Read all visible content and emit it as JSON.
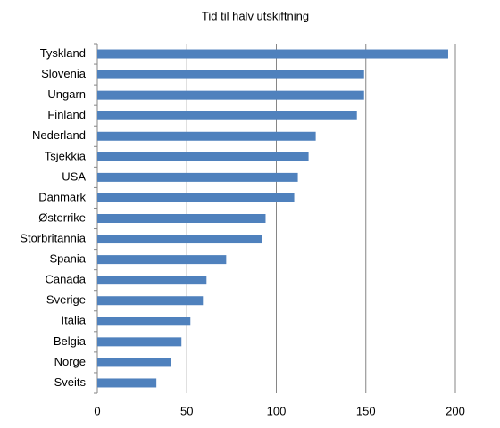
{
  "chart_data": {
    "type": "bar",
    "orientation": "horizontal",
    "title": "Tid til halv utskiftning",
    "categories": [
      "Tyskland",
      "Slovenia",
      "Ungarn",
      "Finland",
      "Nederland",
      "Tsjekkia",
      "USA",
      "Danmark",
      "Østerrike",
      "Storbritannia",
      "Spania",
      "Canada",
      "Sverige",
      "Italia",
      "Belgia",
      "Norge",
      "Sveits"
    ],
    "values": [
      196,
      149,
      149,
      145,
      122,
      118,
      112,
      110,
      94,
      92,
      72,
      61,
      59,
      52,
      47,
      41,
      33
    ],
    "color": "#4f81bd",
    "xlim": [
      0,
      200
    ],
    "xticks": [
      0,
      50,
      100,
      150,
      200
    ],
    "grid": true
  }
}
